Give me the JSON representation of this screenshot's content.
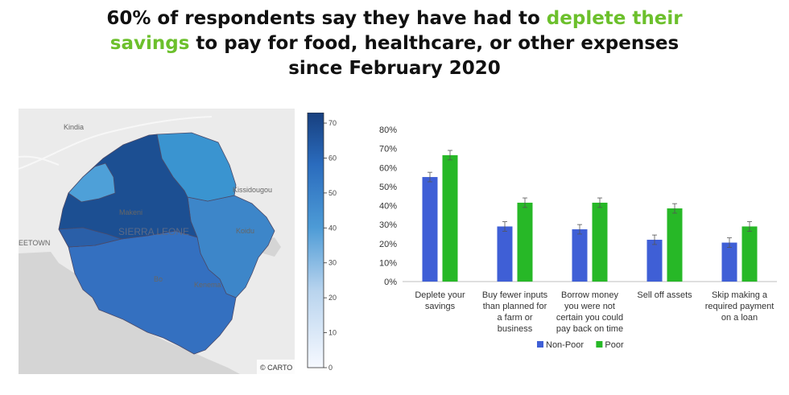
{
  "headline": {
    "before": "60% of respondents say they have had to ",
    "highlight_1": "deplete their",
    "highlight_2": "savings",
    "after_1": " to pay for food, healthcare, or other expenses",
    "line_3": "since February 2020",
    "highlight_color": "#6cc02c"
  },
  "map": {
    "place_labels": [
      "Kindia",
      "Kissidougou",
      "Makeni",
      "SIERRA LEONE",
      "Koidu",
      "EETOWN",
      "Bo",
      "Kenema"
    ],
    "attribution": "© CARTO"
  },
  "colorbar": {
    "ticks": [
      "70",
      "60",
      "50",
      "40",
      "30",
      "20",
      "10",
      "0"
    ],
    "range": [
      0,
      73
    ]
  },
  "chart_data": {
    "type": "bar",
    "categories": [
      [
        "Deplete your",
        "savings"
      ],
      [
        "Buy fewer inputs",
        "than planned for",
        "a farm or",
        "business"
      ],
      [
        "Borrow money",
        "you were not",
        "certain you could",
        "pay back on time"
      ],
      [
        "Sell off assets"
      ],
      [
        "Skip making a",
        "required payment",
        "on a loan"
      ]
    ],
    "series": [
      {
        "name": "Non-Poor",
        "color": "#3f5fd6",
        "values": [
          55,
          29,
          27.5,
          22,
          20.5
        ]
      },
      {
        "name": "Poor",
        "color": "#27b827",
        "values": [
          66.5,
          41.5,
          41.5,
          38.5,
          29
        ]
      }
    ],
    "y_ticks": [
      "0%",
      "10%",
      "20%",
      "30%",
      "40%",
      "50%",
      "60%",
      "70%",
      "80%"
    ],
    "ylim": [
      0,
      80
    ],
    "error_bars": true,
    "legend_position": "bottom-center",
    "grid": false
  }
}
